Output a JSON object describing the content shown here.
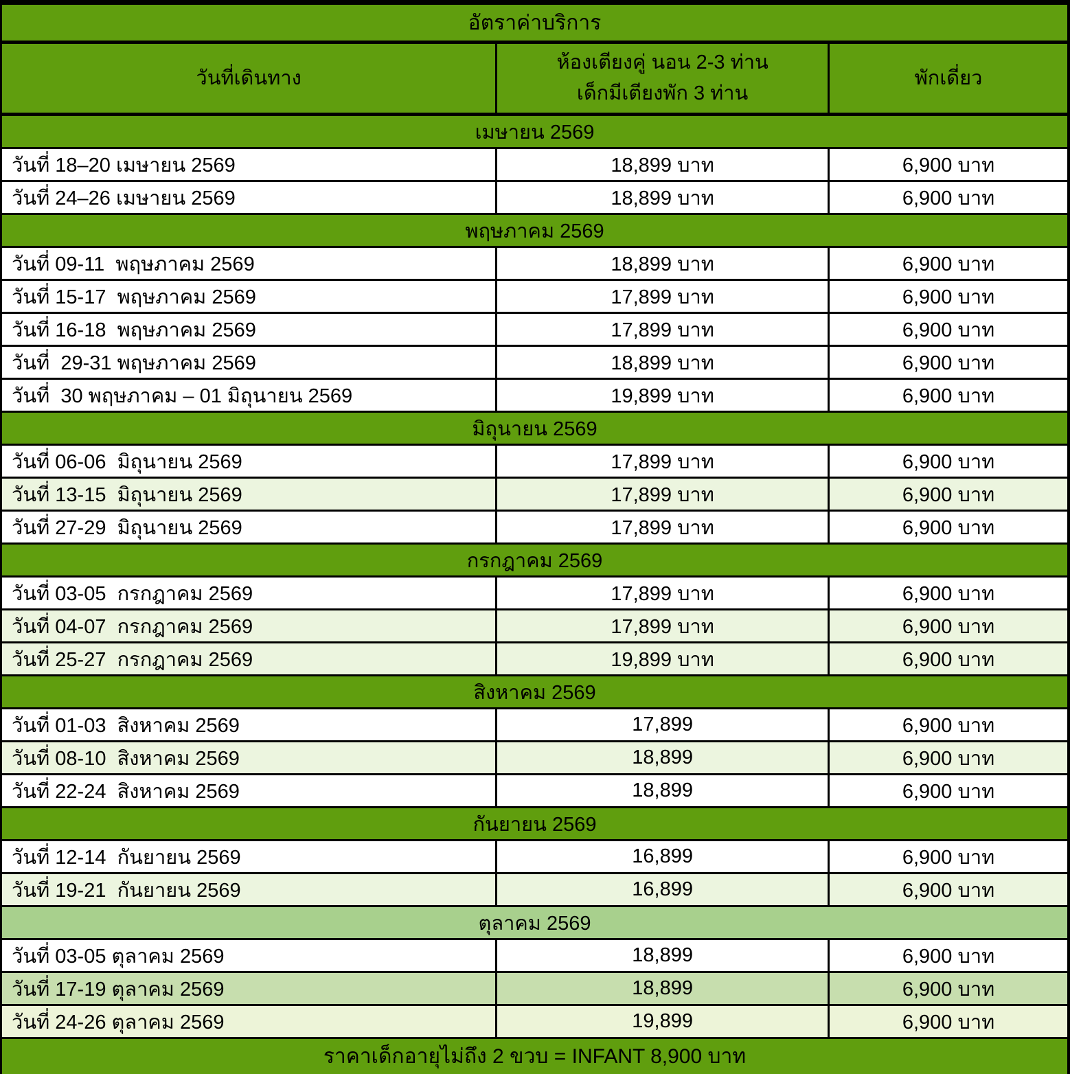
{
  "title": "อัตราค่าบริการ",
  "header": {
    "col_date": "วันที่เดินทาง",
    "col_price_line1": "ห้องเตียงคู่ นอน 2-3 ท่าน",
    "col_price_line2": "เด็กมีเตียงพัก 3 ท่าน",
    "col_single": "พักเดี่ยว"
  },
  "sections": [
    {
      "month": "เมษายน 2569",
      "header_bg": "green",
      "rows": [
        {
          "date": "วันที่ 18–20 เมษายน 2569",
          "price": "18,899 บาท",
          "single": "6,900 บาท",
          "bg": "white"
        },
        {
          "date": "วันที่ 24–26 เมษายน 2569",
          "price": "18,899 บาท",
          "single": "6,900 บาท",
          "bg": "white"
        }
      ]
    },
    {
      "month": "พฤษภาคม 2569",
      "header_bg": "green",
      "rows": [
        {
          "date": "วันที่ 09-11  พฤษภาคม 2569",
          "price": "18,899 บาท",
          "single": "6,900 บาท",
          "bg": "white"
        },
        {
          "date": "วันที่ 15-17  พฤษภาคม 2569",
          "price": "17,899 บาท",
          "single": "6,900 บาท",
          "bg": "white"
        },
        {
          "date": "วันที่ 16-18  พฤษภาคม 2569",
          "price": "17,899 บาท",
          "single": "6,900 บาท",
          "bg": "white"
        },
        {
          "date": "วันที่  29-31 พฤษภาคม 2569",
          "price": "18,899 บาท",
          "single": "6,900 บาท",
          "bg": "white"
        },
        {
          "date": "วันที่  30 พฤษภาคม – 01 มิถุนายน 2569",
          "price": "19,899 บาท",
          "single": "6,900 บาท",
          "bg": "white"
        }
      ]
    },
    {
      "month": "มิถุนายน 2569",
      "header_bg": "green",
      "rows": [
        {
          "date": "วันที่ 06-06  มิถุนายน 2569",
          "price": "17,899 บาท",
          "single": "6,900 บาท",
          "bg": "white"
        },
        {
          "date": "วันที่ 13-15  มิถุนายน 2569",
          "price": "17,899 บาท",
          "single": "6,900 บาท",
          "bg": "light"
        },
        {
          "date": "วันที่ 27-29  มิถุนายน 2569",
          "price": "17,899 บาท",
          "single": "6,900 บาท",
          "bg": "white"
        }
      ]
    },
    {
      "month": "กรกฎาคม 2569",
      "header_bg": "green",
      "rows": [
        {
          "date": "วันที่ 03-05  กรกฎาคม 2569",
          "price": "17,899 บาท",
          "single": "6,900 บาท",
          "bg": "white"
        },
        {
          "date": "วันที่ 04-07  กรกฎาคม 2569",
          "price": "17,899 บาท",
          "single": "6,900 บาท",
          "bg": "light"
        },
        {
          "date": "วันที่ 25-27  กรกฎาคม 2569",
          "price": "19,899 บาท",
          "single": "6,900 บาท",
          "bg": "light"
        }
      ]
    },
    {
      "month": "สิงหาคม 2569",
      "header_bg": "green",
      "rows": [
        {
          "date": "วันที่ 01-03  สิงหาคม 2569",
          "price": "17,899",
          "single": "6,900 บาท",
          "bg": "white"
        },
        {
          "date": "วันที่ 08-10  สิงหาคม 2569",
          "price": "18,899",
          "single": "6,900 บาท",
          "bg": "light"
        },
        {
          "date": "วันที่ 22-24  สิงหาคม 2569",
          "price": "18,899",
          "single": "6,900 บาท",
          "bg": "white"
        }
      ]
    },
    {
      "month": "กันยายน 2569",
      "header_bg": "green",
      "rows": [
        {
          "date": "วันที่ 12-14  กันยายน 2569",
          "price": "16,899",
          "single": "6,900 บาท",
          "bg": "white"
        },
        {
          "date": "วันที่ 19-21  กันยายน 2569",
          "price": "16,899",
          "single": "6,900 บาท",
          "bg": "light"
        }
      ]
    },
    {
      "month": "ตุลาคม 2569",
      "header_bg": "pale",
      "rows": [
        {
          "date": "วันที่ 03-05 ตุลาคม 2569",
          "price": "18,899",
          "single": "6,900 บาท",
          "bg": "white"
        },
        {
          "date": "วันที่ 17-19 ตุลาคม 2569",
          "price": "18,899",
          "single": "6,900 บาท",
          "bg": "medium"
        },
        {
          "date": "วันที่ 24-26 ตุลาคม 2569",
          "price": "19,899",
          "single": "6,900 บาท",
          "bg": "paleyellow"
        }
      ]
    }
  ],
  "footer": "ราคาเด็กอายุไม่ถึง 2 ขวบ = INFANT 8,900 บาท",
  "colors": {
    "header_green": "#609e0e",
    "row_light_green": "#ecf5df",
    "october_header_green": "#a8d08d",
    "october_row_green": "#c7deae",
    "october_row_pale": "#edf4d8",
    "border_black": "#000000"
  }
}
